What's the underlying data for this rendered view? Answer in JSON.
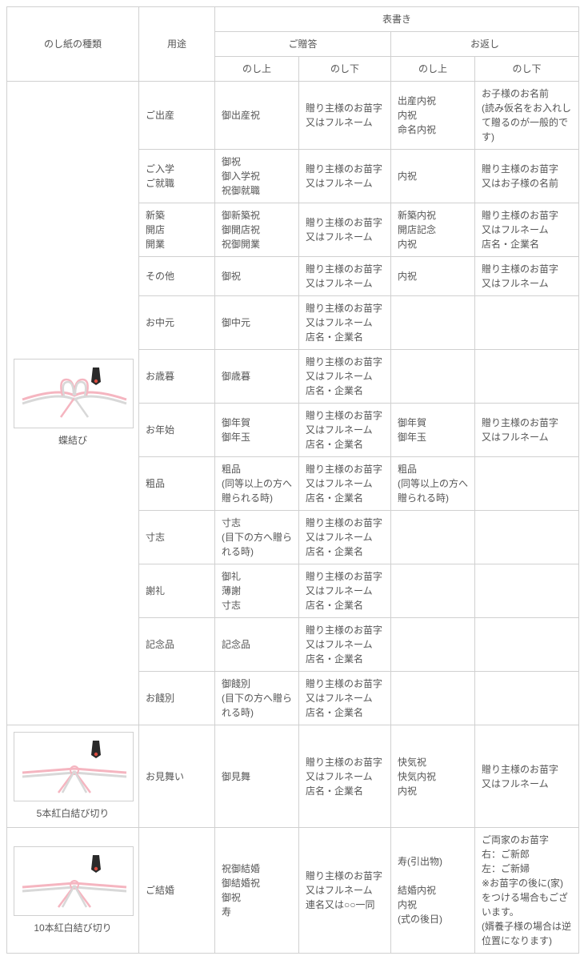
{
  "headers": {
    "type": "のし紙の種類",
    "use": "用途",
    "surface": "表書き",
    "gift": "ご贈答",
    "return": "お返し",
    "up": "のし上",
    "down": "のし下"
  },
  "groups": [
    {
      "label": "蝶結び",
      "knot": "bow",
      "rows": [
        {
          "use": "ご出産",
          "gift_up": "御出産祝",
          "gift_dn": "贈り主様のお苗字\n又はフルネーム",
          "ret_up": "出産内祝\n内祝\n命名内祝",
          "ret_dn": "お子様のお名前\n(読み仮名をお入れして贈るのが一般的です)"
        },
        {
          "use": "ご入学\nご就職",
          "gift_up": "御祝\n御入学祝\n祝御就職",
          "gift_dn": "贈り主様のお苗字\n又はフルネーム",
          "ret_up": "内祝",
          "ret_dn": "贈り主様のお苗字\n又はお子様の名前"
        },
        {
          "use": "新築\n開店\n開業",
          "gift_up": "御新築祝\n御開店祝\n祝御開業",
          "gift_dn": "贈り主様のお苗字\n又はフルネーム",
          "ret_up": "新築内祝\n開店記念\n内祝",
          "ret_dn": "贈り主様のお苗字\n又はフルネーム\n店名・企業名"
        },
        {
          "use": "その他",
          "gift_up": "御祝",
          "gift_dn": "贈り主様のお苗字\n又はフルネーム",
          "ret_up": "内祝",
          "ret_dn": "贈り主様のお苗字\n又はフルネーム"
        },
        {
          "use": "お中元",
          "gift_up": "御中元",
          "gift_dn": "贈り主様のお苗字\n又はフルネーム\n店名・企業名",
          "ret_up": "",
          "ret_dn": ""
        },
        {
          "use": "お歳暮",
          "gift_up": "御歳暮",
          "gift_dn": "贈り主様のお苗字\n又はフルネーム\n店名・企業名",
          "ret_up": "",
          "ret_dn": ""
        },
        {
          "use": "お年始",
          "gift_up": "御年賀\n御年玉",
          "gift_dn": "贈り主様のお苗字\n又はフルネーム\n店名・企業名",
          "ret_up": "御年賀\n御年玉",
          "ret_dn": "贈り主様のお苗字\n又はフルネーム"
        },
        {
          "use": "粗品",
          "gift_up": "粗品\n(同等以上の方へ贈られる時)",
          "gift_dn": "贈り主様のお苗字\n又はフルネーム\n店名・企業名",
          "ret_up": "粗品\n(同等以上の方へ贈られる時)",
          "ret_dn": ""
        },
        {
          "use": "寸志",
          "gift_up": "寸志\n(目下の方へ贈られる時)",
          "gift_dn": "贈り主様のお苗字\n又はフルネーム\n店名・企業名",
          "ret_up": "",
          "ret_dn": ""
        },
        {
          "use": "謝礼",
          "gift_up": "御礼\n薄謝\n寸志",
          "gift_dn": "贈り主様のお苗字\n又はフルネーム\n店名・企業名",
          "ret_up": "",
          "ret_dn": ""
        },
        {
          "use": "記念品",
          "gift_up": "記念品",
          "gift_dn": "贈り主様のお苗字\n又はフルネーム\n店名・企業名",
          "ret_up": "",
          "ret_dn": ""
        },
        {
          "use": "お餞別",
          "gift_up": "御餞別\n(目下の方へ贈られる時)",
          "gift_dn": "贈り主様のお苗字\n又はフルネーム\n店名・企業名",
          "ret_up": "",
          "ret_dn": ""
        }
      ]
    },
    {
      "label": "5本紅白結び切り",
      "knot": "cut",
      "rows": [
        {
          "use": "お見舞い",
          "gift_up": "御見舞",
          "gift_dn": "贈り主様のお苗字\n又はフルネーム\n店名・企業名",
          "ret_up": "快気祝\n快気内祝\n内祝",
          "ret_dn": "贈り主様のお苗字\n又はフルネーム"
        }
      ]
    },
    {
      "label": "10本紅白結び切り",
      "knot": "cut",
      "rows": [
        {
          "use": "ご結婚",
          "gift_up": "祝御結婚\n御結婚祝\n御祝\n寿",
          "gift_dn": "贈り主様のお苗字\n又はフルネーム\n連名又は○○一同",
          "ret_up": "寿(引出物)\n\n結婚内祝\n内祝\n(式の後日)",
          "ret_dn": "ご両家のお苗字\n右：ご新郎\n左：ご新婦\n※お苗字の後に(家)をつける場合もございます。\n(婿養子様の場合は逆位置になります)"
        }
      ]
    }
  ],
  "colors": {
    "border": "#d0d0d0",
    "text": "#555555",
    "red": "#f5b5c0",
    "white": "#d8d8d8",
    "orn": "#2a2a2a",
    "orn_accent": "#d94a3f"
  }
}
